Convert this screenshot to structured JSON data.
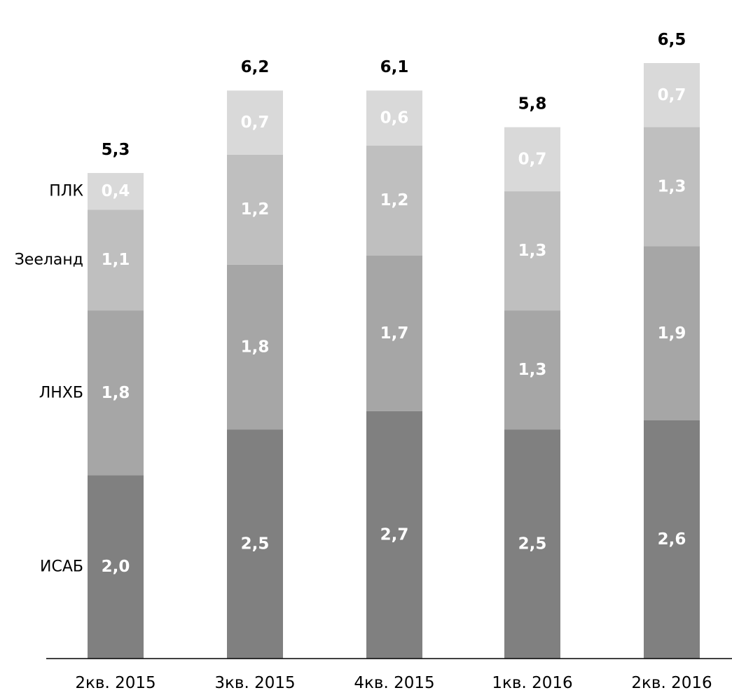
{
  "chart_data": {
    "type": "bar",
    "stacked": true,
    "categories": [
      "2кв. 2015",
      "3кв. 2015",
      "4кв. 2015",
      "1кв. 2016",
      "2кв. 2016"
    ],
    "series": [
      {
        "name": "ИСАБ",
        "values": [
          2.0,
          2.5,
          2.7,
          2.5,
          2.6
        ],
        "labels": [
          "2,0",
          "2,5",
          "2,7",
          "2,5",
          "2,6"
        ],
        "color": "#808080"
      },
      {
        "name": "ЛНХБ",
        "values": [
          1.8,
          1.8,
          1.7,
          1.3,
          1.9
        ],
        "labels": [
          "1,8",
          "1,8",
          "1,7",
          "1,3",
          "1,9"
        ],
        "color": "#a6a6a6"
      },
      {
        "name": "Зееланд",
        "values": [
          1.1,
          1.2,
          1.2,
          1.3,
          1.3
        ],
        "labels": [
          "1,1",
          "1,2",
          "1,2",
          "1,3",
          "1,3"
        ],
        "color": "#bfbfbf"
      },
      {
        "name": "ПЛК",
        "values": [
          0.4,
          0.7,
          0.6,
          0.7,
          0.7
        ],
        "labels": [
          "0,4",
          "0,7",
          "0,6",
          "0,7",
          "0,7"
        ],
        "color": "#d9d9d9"
      }
    ],
    "totals": [
      5.3,
      6.2,
      6.1,
      5.8,
      6.5
    ],
    "total_labels": [
      "5,3",
      "6,2",
      "6,1",
      "5,8",
      "6,5"
    ],
    "title": "",
    "xlabel": "",
    "ylabel": "",
    "ylim": [
      0,
      6.5
    ],
    "grid": false,
    "legend": "left, inline with first bar"
  }
}
